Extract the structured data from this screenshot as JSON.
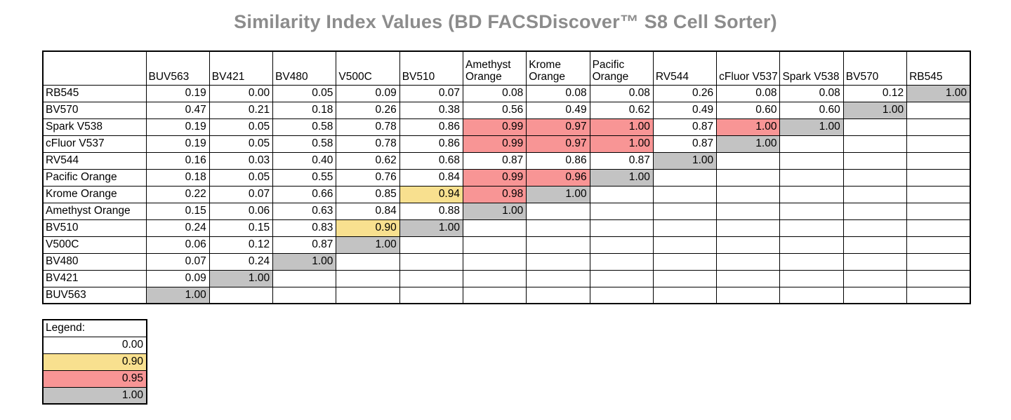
{
  "page": {
    "title": "Similarity Index Values (BD FACSDiscover™ S8 Cell Sorter)"
  },
  "colors": {
    "white": "#FFFFFF",
    "yellow": "#F8E08F",
    "red": "#F89595",
    "gray": "#C3C3C3"
  },
  "chart_data": {
    "type": "heatmap",
    "title": "Similarity Index Values (BD FACSDiscover™ S8 Cell Sorter)",
    "subtitle": "",
    "legend_position": "bottom-left",
    "color_thresholds": [
      {
        "value": "0.00",
        "color": "white"
      },
      {
        "value": "0.90",
        "color": "yellow"
      },
      {
        "value": "0.95",
        "color": "red"
      },
      {
        "value": "1.00",
        "color": "gray"
      }
    ],
    "columns": [
      "BUV563",
      "BV421",
      "BV480",
      "V500C",
      "BV510",
      "Amethyst Orange",
      "Krome Orange",
      "Pacific Orange",
      "RV544",
      "cFluor V537",
      "Spark V538",
      "BV570",
      "RB545"
    ],
    "rows": [
      {
        "label": "RB545",
        "cells": [
          [
            "0.19",
            "white"
          ],
          [
            "0.00",
            "white"
          ],
          [
            "0.05",
            "white"
          ],
          [
            "0.09",
            "white"
          ],
          [
            "0.07",
            "white"
          ],
          [
            "0.08",
            "white"
          ],
          [
            "0.08",
            "white"
          ],
          [
            "0.08",
            "white"
          ],
          [
            "0.26",
            "white"
          ],
          [
            "0.08",
            "white"
          ],
          [
            "0.08",
            "white"
          ],
          [
            "0.12",
            "white"
          ],
          [
            "1.00",
            "gray"
          ]
        ]
      },
      {
        "label": "BV570",
        "cells": [
          [
            "0.47",
            "white"
          ],
          [
            "0.21",
            "white"
          ],
          [
            "0.18",
            "white"
          ],
          [
            "0.26",
            "white"
          ],
          [
            "0.38",
            "white"
          ],
          [
            "0.56",
            "white"
          ],
          [
            "0.49",
            "white"
          ],
          [
            "0.62",
            "white"
          ],
          [
            "0.49",
            "white"
          ],
          [
            "0.60",
            "white"
          ],
          [
            "0.60",
            "white"
          ],
          [
            "1.00",
            "gray"
          ],
          null
        ]
      },
      {
        "label": "Spark V538",
        "cells": [
          [
            "0.19",
            "white"
          ],
          [
            "0.05",
            "white"
          ],
          [
            "0.58",
            "white"
          ],
          [
            "0.78",
            "white"
          ],
          [
            "0.86",
            "white"
          ],
          [
            "0.99",
            "red"
          ],
          [
            "0.97",
            "red"
          ],
          [
            "1.00",
            "red"
          ],
          [
            "0.87",
            "white"
          ],
          [
            "1.00",
            "red"
          ],
          [
            "1.00",
            "gray"
          ],
          null,
          null
        ]
      },
      {
        "label": "cFluor V537",
        "cells": [
          [
            "0.19",
            "white"
          ],
          [
            "0.05",
            "white"
          ],
          [
            "0.58",
            "white"
          ],
          [
            "0.78",
            "white"
          ],
          [
            "0.86",
            "white"
          ],
          [
            "0.99",
            "red"
          ],
          [
            "0.97",
            "red"
          ],
          [
            "1.00",
            "red"
          ],
          [
            "0.87",
            "white"
          ],
          [
            "1.00",
            "gray"
          ],
          null,
          null,
          null
        ]
      },
      {
        "label": "RV544",
        "cells": [
          [
            "0.16",
            "white"
          ],
          [
            "0.03",
            "white"
          ],
          [
            "0.40",
            "white"
          ],
          [
            "0.62",
            "white"
          ],
          [
            "0.68",
            "white"
          ],
          [
            "0.87",
            "white"
          ],
          [
            "0.86",
            "white"
          ],
          [
            "0.87",
            "white"
          ],
          [
            "1.00",
            "gray"
          ],
          null,
          null,
          null,
          null
        ]
      },
      {
        "label": "Pacific Orange",
        "cells": [
          [
            "0.18",
            "white"
          ],
          [
            "0.05",
            "white"
          ],
          [
            "0.55",
            "white"
          ],
          [
            "0.76",
            "white"
          ],
          [
            "0.84",
            "white"
          ],
          [
            "0.99",
            "red"
          ],
          [
            "0.96",
            "red"
          ],
          [
            "1.00",
            "gray"
          ],
          null,
          null,
          null,
          null,
          null
        ]
      },
      {
        "label": "Krome Orange",
        "cells": [
          [
            "0.22",
            "white"
          ],
          [
            "0.07",
            "white"
          ],
          [
            "0.66",
            "white"
          ],
          [
            "0.85",
            "white"
          ],
          [
            "0.94",
            "yellow"
          ],
          [
            "0.98",
            "red"
          ],
          [
            "1.00",
            "gray"
          ],
          null,
          null,
          null,
          null,
          null,
          null
        ]
      },
      {
        "label": "Amethyst Orange",
        "cells": [
          [
            "0.15",
            "white"
          ],
          [
            "0.06",
            "white"
          ],
          [
            "0.63",
            "white"
          ],
          [
            "0.84",
            "white"
          ],
          [
            "0.88",
            "white"
          ],
          [
            "1.00",
            "gray"
          ],
          null,
          null,
          null,
          null,
          null,
          null,
          null
        ]
      },
      {
        "label": "BV510",
        "cells": [
          [
            "0.24",
            "white"
          ],
          [
            "0.15",
            "white"
          ],
          [
            "0.83",
            "white"
          ],
          [
            "0.90",
            "yellow"
          ],
          [
            "1.00",
            "gray"
          ],
          null,
          null,
          null,
          null,
          null,
          null,
          null,
          null
        ]
      },
      {
        "label": "V500C",
        "cells": [
          [
            "0.06",
            "white"
          ],
          [
            "0.12",
            "white"
          ],
          [
            "0.87",
            "white"
          ],
          [
            "1.00",
            "gray"
          ],
          null,
          null,
          null,
          null,
          null,
          null,
          null,
          null,
          null
        ]
      },
      {
        "label": "BV480",
        "cells": [
          [
            "0.07",
            "white"
          ],
          [
            "0.24",
            "white"
          ],
          [
            "1.00",
            "gray"
          ],
          null,
          null,
          null,
          null,
          null,
          null,
          null,
          null,
          null,
          null
        ]
      },
      {
        "label": "BV421",
        "cells": [
          [
            "0.09",
            "white"
          ],
          [
            "1.00",
            "gray"
          ],
          null,
          null,
          null,
          null,
          null,
          null,
          null,
          null,
          null,
          null,
          null
        ]
      },
      {
        "label": "BUV563",
        "cells": [
          [
            "1.00",
            "gray"
          ],
          null,
          null,
          null,
          null,
          null,
          null,
          null,
          null,
          null,
          null,
          null,
          null
        ]
      }
    ]
  },
  "legend": {
    "title": "Legend:",
    "entries": [
      [
        "0.00",
        "white"
      ],
      [
        "0.90",
        "yellow"
      ],
      [
        "0.95",
        "red"
      ],
      [
        "1.00",
        "gray"
      ]
    ]
  }
}
